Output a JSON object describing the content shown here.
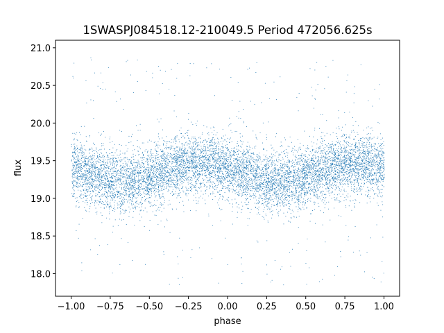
{
  "chart_data": {
    "type": "scatter",
    "title": "1SWASPJ084518.12-210049.5 Period 472056.625s",
    "xlabel": "phase",
    "ylabel": "flux",
    "xlim": [
      -1.1,
      1.1
    ],
    "ylim": [
      17.7,
      21.1
    ],
    "xticks": [
      -1.0,
      -0.75,
      -0.5,
      -0.25,
      0.0,
      0.25,
      0.5,
      0.75,
      1.0
    ],
    "xtick_labels": [
      "−1.00",
      "−0.75",
      "−0.50",
      "−0.25",
      "0.00",
      "0.25",
      "0.50",
      "0.75",
      "1.00"
    ],
    "yticks": [
      18.0,
      18.5,
      19.0,
      19.5,
      20.0,
      20.5,
      21.0
    ],
    "ytick_labels": [
      "18.0",
      "18.5",
      "19.0",
      "19.5",
      "20.0",
      "20.5",
      "21.0"
    ],
    "grid": false,
    "marker_color": "#1f77b4",
    "series": [
      {
        "x_range": [
          -1.0,
          1.0
        ],
        "core_flux": 19.35,
        "modulation_amplitude": 0.12,
        "modulation_cycles_per_unit_phase": 1.0,
        "core_scatter": 0.2,
        "outlier_range": [
          17.85,
          20.9
        ],
        "approx_points": 9000
      }
    ]
  }
}
